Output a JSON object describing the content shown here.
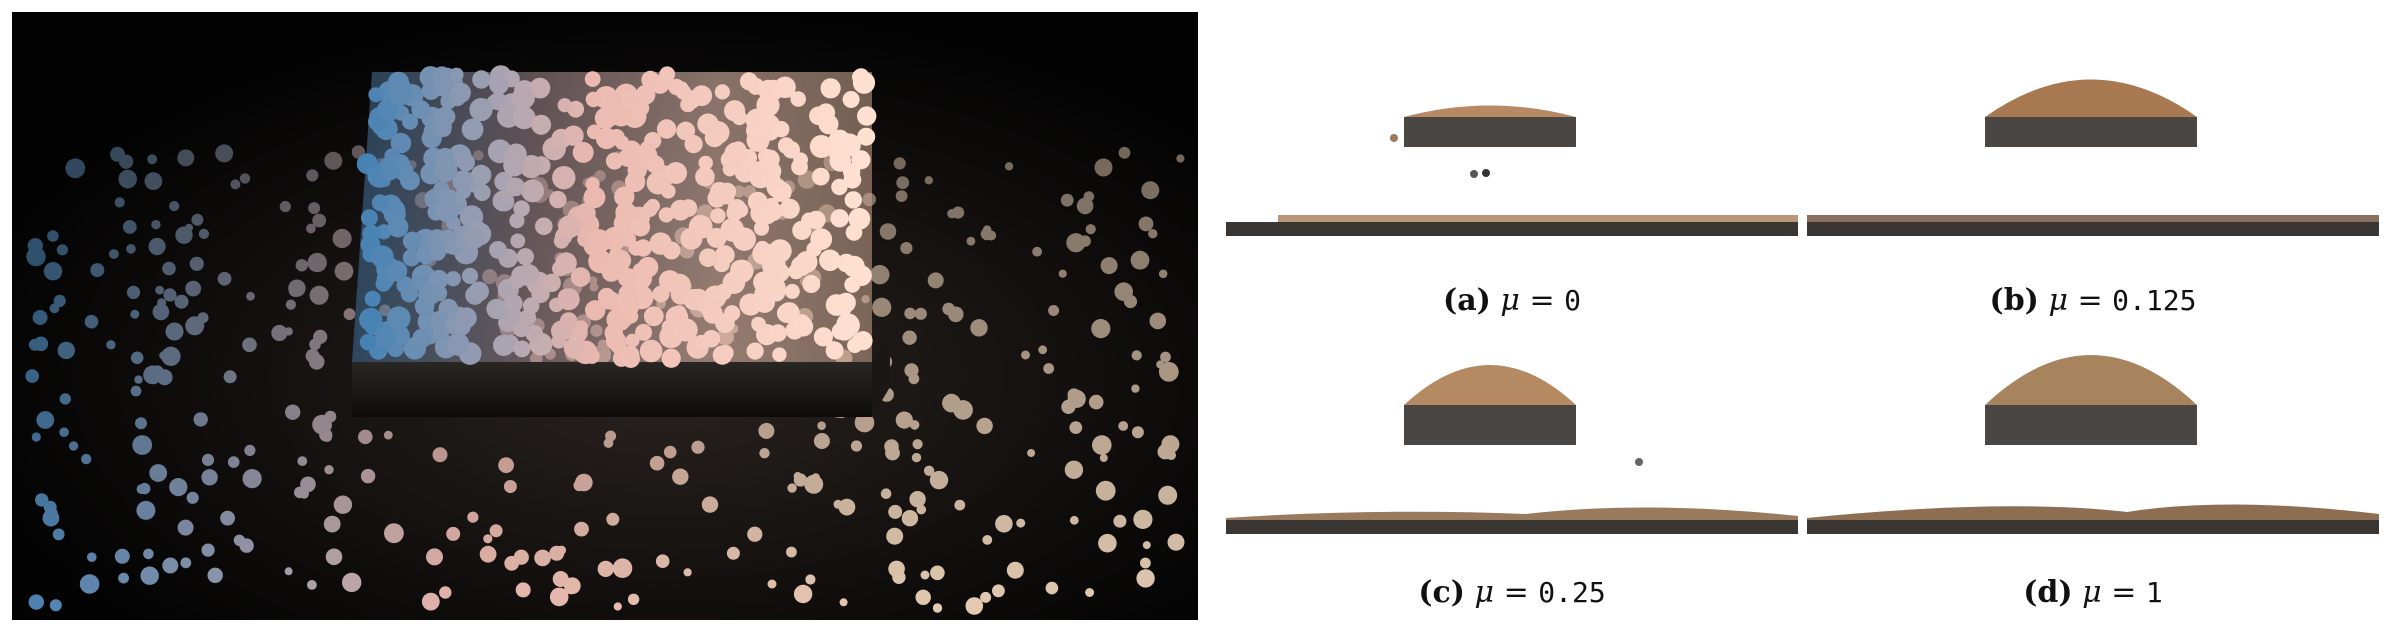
{
  "figure": {
    "hero_image": "rendered-granular-spill",
    "subfigures": [
      {
        "id": "a",
        "label": "(a)",
        "symbol": "μ",
        "relation": "=",
        "value": "0"
      },
      {
        "id": "b",
        "label": "(b)",
        "symbol": "μ",
        "relation": "=",
        "value": "0.125"
      },
      {
        "id": "c",
        "label": "(c)",
        "symbol": "μ",
        "relation": "=",
        "value": "0.25"
      },
      {
        "id": "d",
        "label": "(d)",
        "symbol": "μ",
        "relation": "=",
        "value": "1"
      }
    ]
  }
}
